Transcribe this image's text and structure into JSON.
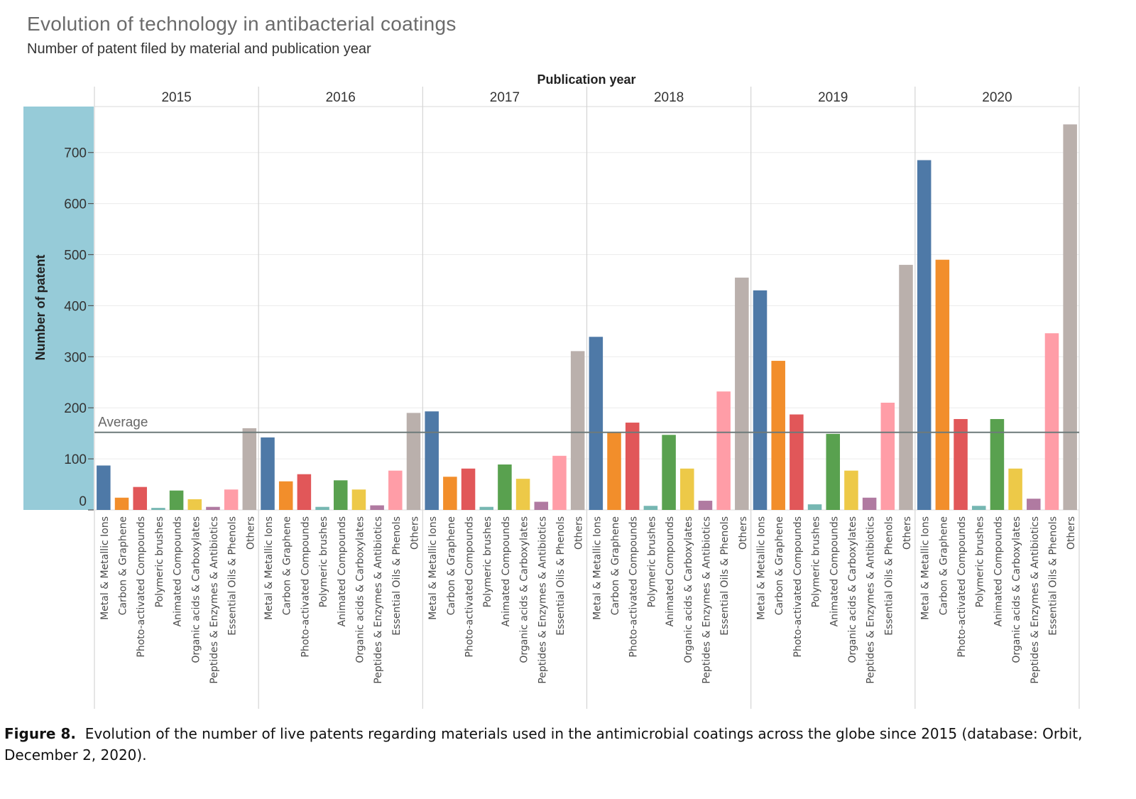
{
  "header": {
    "title": "Evolution of technology in antibacterial coatings",
    "subtitle": "Number of patent filed by material and publication year"
  },
  "caption": {
    "label": "Figure 8.",
    "text": "Evolution of the number of live patents regarding materials used in the antimicrobial coatings across the globe since 2015 (database: Orbit, December 2, 2020)."
  },
  "chart_data": {
    "type": "bar",
    "column_header": "Publication year",
    "ylabel": "Number of patent",
    "ylim": [
      0,
      790
    ],
    "yticks": [
      0,
      100,
      200,
      300,
      400,
      500,
      600,
      700
    ],
    "grid": true,
    "average": {
      "label": "Average",
      "value": 152
    },
    "categories": [
      "Metal & Metallic Ions",
      "Carbon & Graphene",
      "Photo-activated Compounds",
      "Polymeric brushes",
      "Animated Compounds",
      "Organic acids & Carboxylates",
      "Peptides & Enzymes & Antibiotics",
      "Essential Oils & Phenols",
      "Others"
    ],
    "colors": [
      "#4e79a7",
      "#f28e2b",
      "#e15759",
      "#76b7b2",
      "#59a14f",
      "#edc948",
      "#b07aa1",
      "#ff9da7",
      "#bab0ac"
    ],
    "groups": [
      {
        "year": "2015",
        "values": [
          87,
          24,
          45,
          4,
          38,
          21,
          6,
          40,
          160
        ]
      },
      {
        "year": "2016",
        "values": [
          142,
          56,
          70,
          6,
          58,
          40,
          9,
          77,
          190
        ]
      },
      {
        "year": "2017",
        "values": [
          193,
          65,
          81,
          6,
          89,
          61,
          16,
          106,
          311
        ]
      },
      {
        "year": "2018",
        "values": [
          339,
          153,
          171,
          8,
          147,
          81,
          18,
          232,
          455
        ]
      },
      {
        "year": "2019",
        "values": [
          430,
          292,
          187,
          11,
          149,
          77,
          24,
          210,
          480
        ]
      },
      {
        "year": "2020",
        "values": [
          685,
          490,
          178,
          8,
          178,
          81,
          22,
          346,
          755
        ]
      }
    ]
  }
}
